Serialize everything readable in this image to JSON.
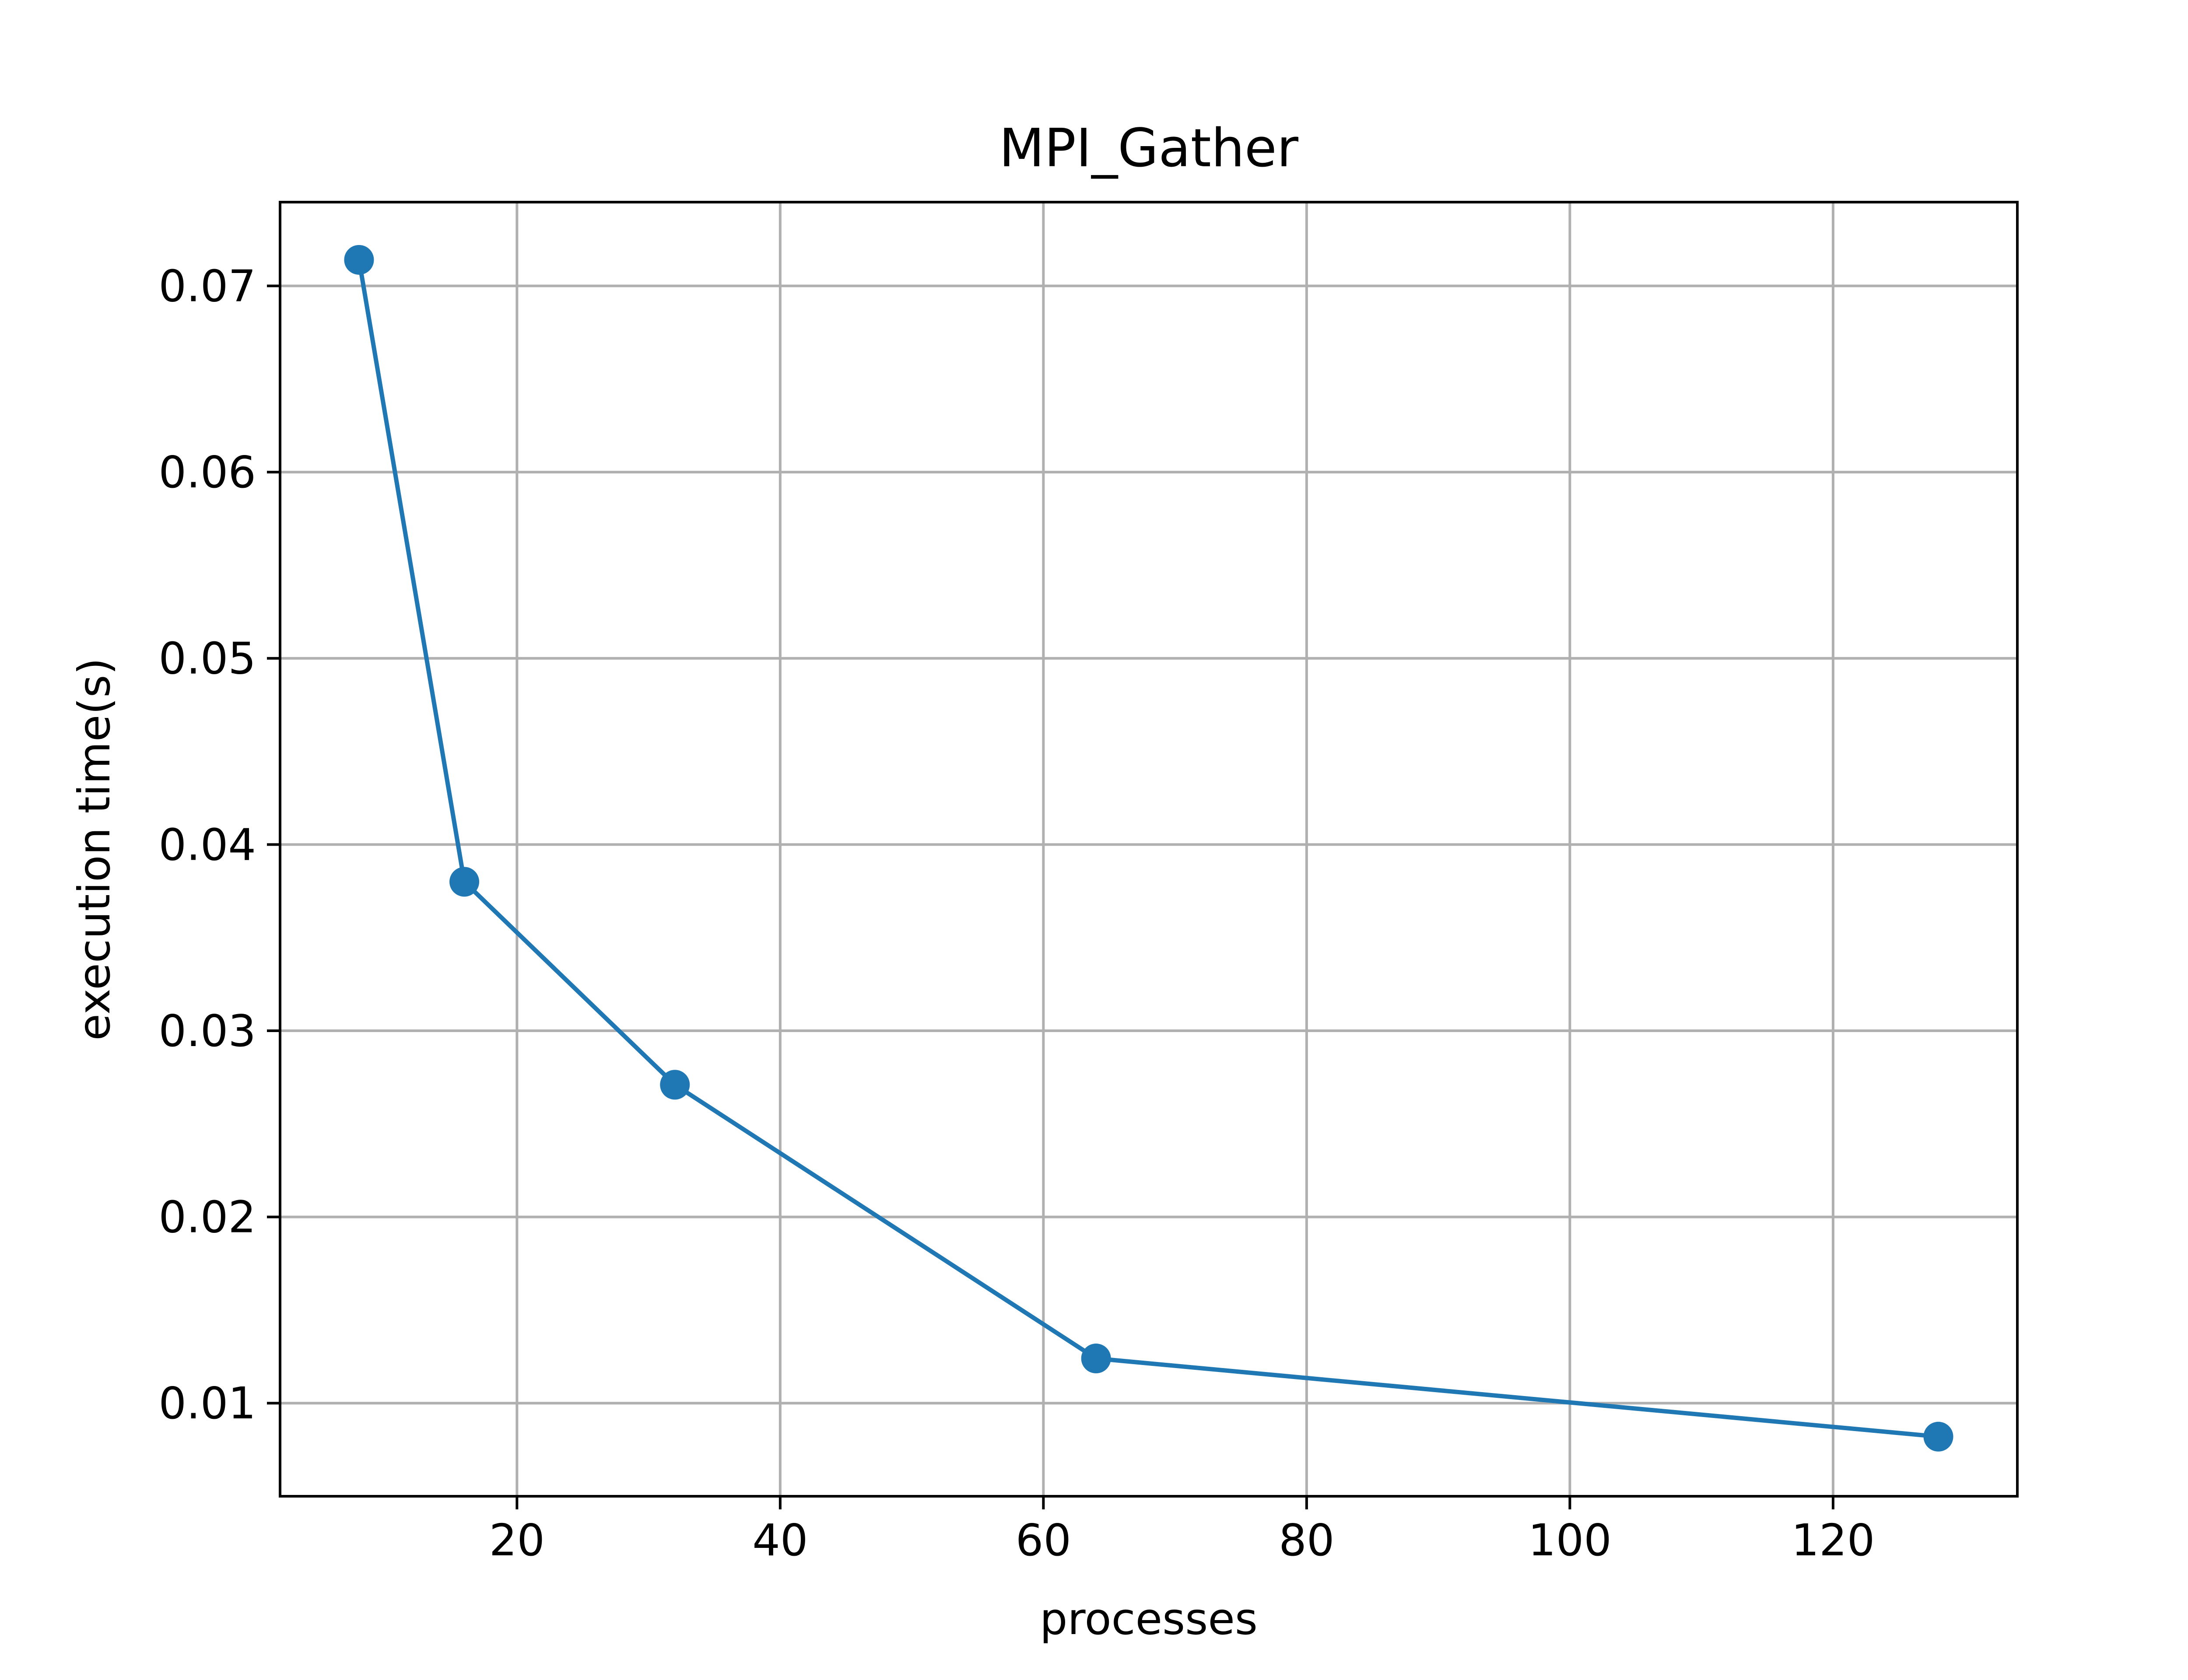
{
  "chart_data": {
    "type": "line",
    "title": "MPI_Gather",
    "xlabel": "processes",
    "ylabel": "execution time(s)",
    "x": [
      8,
      16,
      32,
      64,
      128
    ],
    "series": [
      {
        "values": [
          0.0714,
          0.038,
          0.0271,
          0.0124,
          0.0082
        ],
        "color": "#1f77b4",
        "marker": "circle"
      }
    ],
    "xlim": [
      2,
      134
    ],
    "ylim": [
      0.005,
      0.0745
    ],
    "xticks": [
      20,
      40,
      60,
      80,
      100,
      120
    ],
    "xtick_labels": [
      "20",
      "40",
      "60",
      "80",
      "100",
      "120"
    ],
    "yticks": [
      0.01,
      0.02,
      0.03,
      0.04,
      0.05,
      0.06,
      0.07
    ],
    "ytick_labels": [
      "0.01",
      "0.02",
      "0.03",
      "0.04",
      "0.05",
      "0.06",
      "0.07"
    ],
    "grid": true,
    "legend": "none"
  }
}
